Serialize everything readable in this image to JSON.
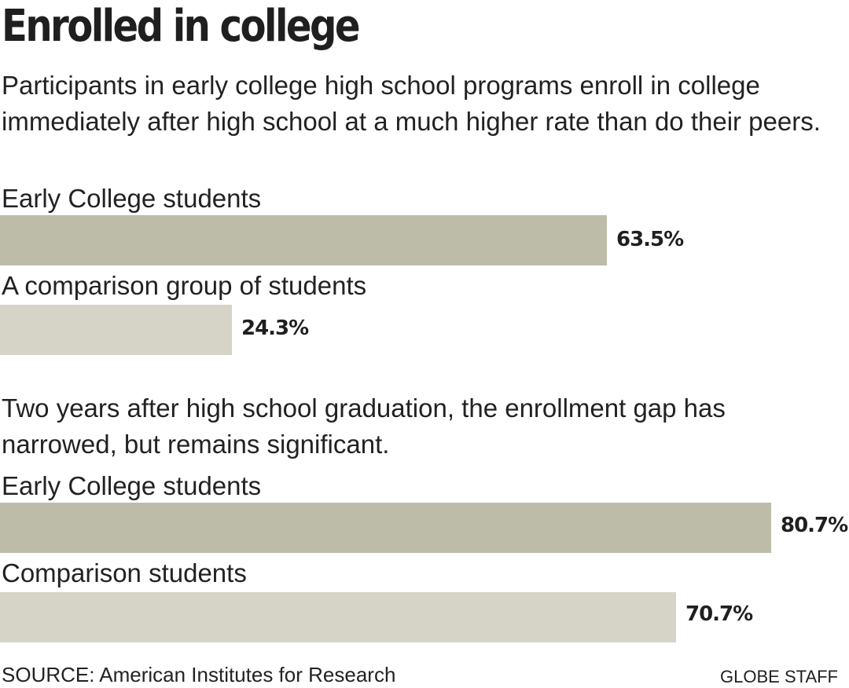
{
  "title": "Enrolled in college",
  "chart_data": [
    {
      "type": "bar",
      "title": "Participants in early college high school programs enroll in college immediately after high school at a much higher rate than do their peers.",
      "categories": [
        "Early College students",
        "A comparison group of students"
      ],
      "values": [
        63.5,
        24.3
      ],
      "value_labels": [
        "63.5%",
        "24.3%"
      ],
      "unit": "%",
      "xlim": [
        0,
        100
      ],
      "colors": [
        "#bdbca8",
        "#d6d4c6"
      ]
    },
    {
      "type": "bar",
      "title": "Two years after high school graduation, the enrollment gap has narrowed, but remains significant.",
      "categories": [
        "Early College students",
        "Comparison students"
      ],
      "values": [
        80.7,
        70.7
      ],
      "value_labels": [
        "80.7%",
        "70.7%"
      ],
      "unit": "%",
      "xlim": [
        0,
        100
      ],
      "colors": [
        "#bdbca8",
        "#d6d4c6"
      ]
    }
  ],
  "source": "SOURCE: American Institutes for Research",
  "credit": "GLOBE STAFF"
}
